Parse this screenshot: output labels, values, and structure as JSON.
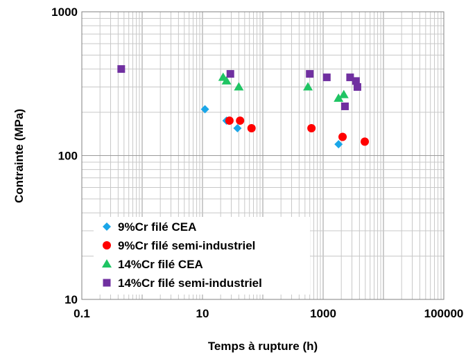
{
  "chart_data": {
    "type": "scatter",
    "title": "",
    "xlabel": "Temps à rupture (h)",
    "ylabel": "Contrainte (MPa)",
    "xscale": "log",
    "yscale": "log",
    "xlim": [
      0.1,
      100000
    ],
    "ylim": [
      10,
      1000
    ],
    "x_ticks": [
      {
        "value": 0.1,
        "label": "0.1"
      },
      {
        "value": 10,
        "label": "10"
      },
      {
        "value": 1000,
        "label": "1000"
      },
      {
        "value": 100000,
        "label": "100000"
      }
    ],
    "y_ticks": [
      {
        "value": 10,
        "label": "10"
      },
      {
        "value": 100,
        "label": "100"
      },
      {
        "value": 1000,
        "label": "1000"
      }
    ],
    "grid": true,
    "legend_position": "bottom-left",
    "series": [
      {
        "name": "9%Cr filé CEA",
        "marker": "diamond",
        "color": "#1aa6e8",
        "points": [
          [
            11,
            210
          ],
          [
            25,
            175
          ],
          [
            38,
            155
          ],
          [
            1800,
            120
          ]
        ]
      },
      {
        "name": "9%Cr filé semi-industriel",
        "marker": "circle",
        "color": "#ff0000",
        "points": [
          [
            28,
            175
          ],
          [
            42,
            175
          ],
          [
            65,
            155
          ],
          [
            640,
            155
          ],
          [
            2100,
            135
          ],
          [
            4900,
            125
          ]
        ]
      },
      {
        "name": "14%Cr filé CEA",
        "marker": "triangle",
        "color": "#1fc463",
        "points": [
          [
            22,
            350
          ],
          [
            25,
            330
          ],
          [
            40,
            300
          ],
          [
            560,
            300
          ],
          [
            1800,
            250
          ],
          [
            2200,
            265
          ]
        ]
      },
      {
        "name": "14%Cr filé semi-industriel",
        "marker": "square",
        "color": "#7030a0",
        "points": [
          [
            0.45,
            400
          ],
          [
            29,
            370
          ],
          [
            600,
            370
          ],
          [
            1150,
            350
          ],
          [
            2300,
            220
          ],
          [
            2800,
            350
          ],
          [
            3500,
            330
          ],
          [
            3700,
            300
          ]
        ]
      }
    ]
  }
}
